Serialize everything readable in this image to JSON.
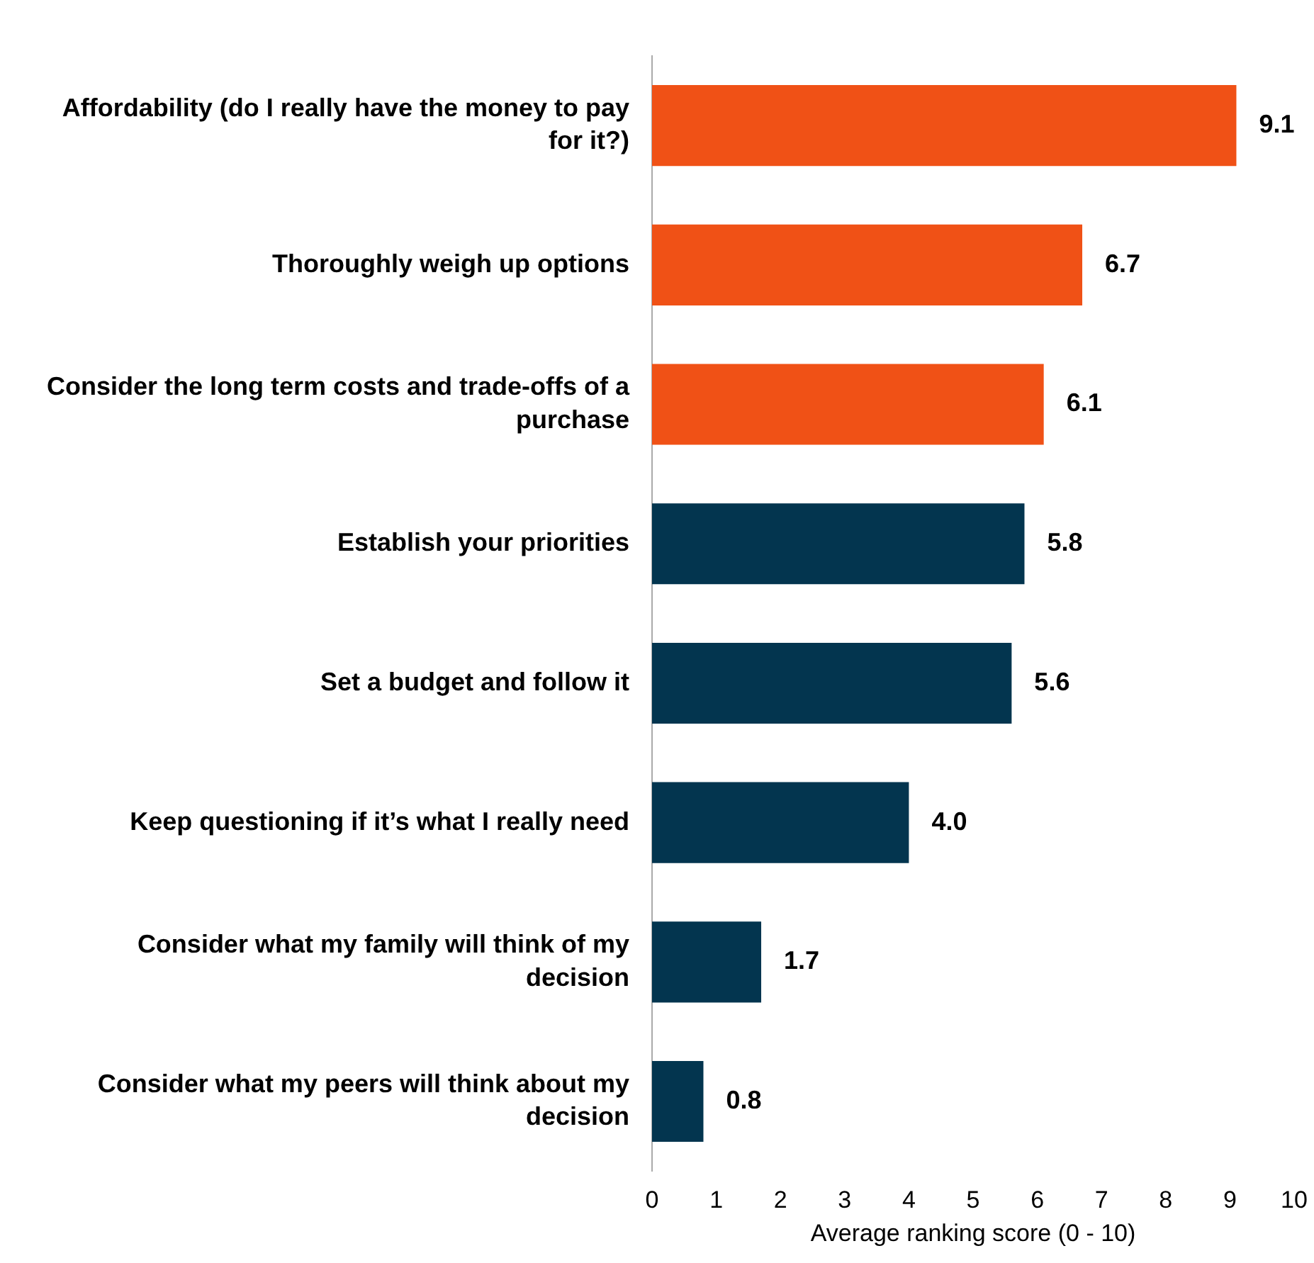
{
  "chart_data": {
    "type": "bar",
    "orientation": "horizontal",
    "xlabel": "Average ranking score (0 - 10)",
    "categories": [
      "Affordability (do I really have the money to pay for it?)",
      "Thoroughly weigh up options",
      "Consider the long term costs and trade-offs of a purchase",
      "Establish your priorities",
      "Set a budget and follow it",
      "Keep questioning if it’s what I really need",
      "Consider what my family will think of my decision",
      "Consider what my peers will think about my decision"
    ],
    "values": [
      9.1,
      6.7,
      6.1,
      5.8,
      5.6,
      4.0,
      1.7,
      0.8
    ],
    "value_labels": [
      "9.1",
      "6.7",
      "6.1",
      "5.8",
      "5.6",
      "4.0",
      "1.7",
      "0.8"
    ],
    "colors": [
      "#f05116",
      "#f05116",
      "#f05116",
      "#03354f",
      "#03354f",
      "#03354f",
      "#03354f",
      "#03354f"
    ],
    "xlim": [
      0,
      10
    ],
    "xticks": [
      0,
      1,
      2,
      3,
      4,
      5,
      6,
      7,
      8,
      9,
      10
    ],
    "grid": false,
    "legend": false
  }
}
